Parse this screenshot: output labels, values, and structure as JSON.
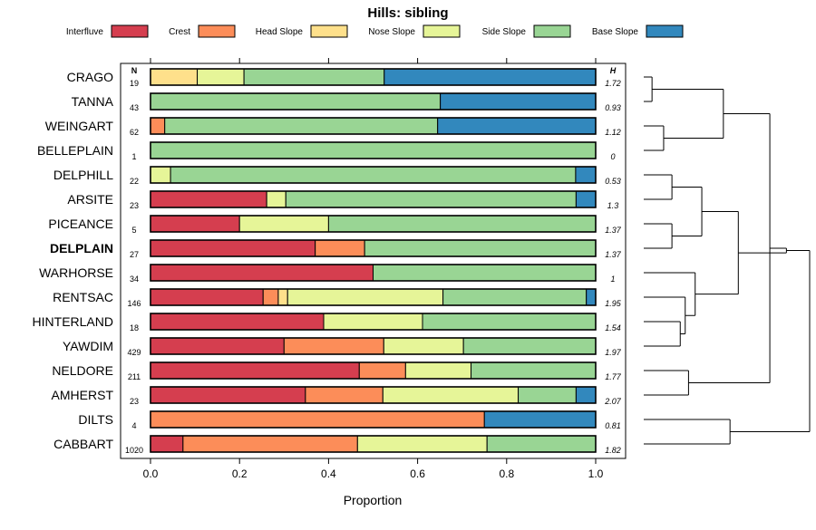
{
  "chart_data": {
    "type": "bar",
    "orientation": "horizontal",
    "stacked": true,
    "title": "Hills: sibling",
    "xlabel": "Proportion",
    "xlim": [
      0,
      1
    ],
    "xticks": [
      0,
      0.2,
      0.4,
      0.6,
      0.8,
      1
    ],
    "xtick_labels": [
      "0.0",
      "0.2",
      "0.4",
      "0.6",
      "0.8",
      "1.0"
    ],
    "n_header": "N",
    "h_header": "H",
    "highlight": "DELPLAIN",
    "legend": [
      {
        "name": "Interfluve",
        "color": "#D53E4F"
      },
      {
        "name": "Crest",
        "color": "#FC8D59"
      },
      {
        "name": "Head Slope",
        "color": "#FEE08B"
      },
      {
        "name": "Nose Slope",
        "color": "#E6F598"
      },
      {
        "name": "Side Slope",
        "color": "#99D594"
      },
      {
        "name": "Base Slope",
        "color": "#3288BD"
      }
    ],
    "rows": [
      {
        "label": "CRAGO",
        "n": "19",
        "h": "1.72",
        "values": [
          0,
          0,
          0.105,
          0.105,
          0.315,
          0.475
        ]
      },
      {
        "label": "TANNA",
        "n": "43",
        "h": "0.93",
        "values": [
          0,
          0,
          0,
          0,
          0.651,
          0.349
        ]
      },
      {
        "label": "WEINGART",
        "n": "62",
        "h": "1.12",
        "values": [
          0,
          0.032,
          0,
          0,
          0.613,
          0.355
        ]
      },
      {
        "label": "BELLEPLAIN",
        "n": "1",
        "h": "0",
        "values": [
          0,
          0,
          0,
          0,
          1.0,
          0
        ]
      },
      {
        "label": "DELPHILL",
        "n": "22",
        "h": "0.53",
        "values": [
          0,
          0,
          0,
          0.045,
          0.91,
          0.045
        ]
      },
      {
        "label": "ARSITE",
        "n": "23",
        "h": "1.3",
        "values": [
          0.261,
          0,
          0,
          0.043,
          0.652,
          0.044
        ]
      },
      {
        "label": "PICEANCE",
        "n": "5",
        "h": "1.37",
        "values": [
          0.2,
          0,
          0,
          0.2,
          0.6,
          0
        ]
      },
      {
        "label": "DELPLAIN",
        "n": "27",
        "h": "1.37",
        "values": [
          0.37,
          0.111,
          0,
          0,
          0.519,
          0
        ]
      },
      {
        "label": "WARHORSE",
        "n": "34",
        "h": "1",
        "values": [
          0.5,
          0,
          0,
          0,
          0.5,
          0
        ]
      },
      {
        "label": "RENTSAC",
        "n": "146",
        "h": "1.95",
        "values": [
          0.253,
          0.034,
          0.021,
          0.349,
          0.322,
          0.021
        ]
      },
      {
        "label": "HINTERLAND",
        "n": "18",
        "h": "1.54",
        "values": [
          0.389,
          0,
          0,
          0.222,
          0.389,
          0
        ]
      },
      {
        "label": "YAWDIM",
        "n": "429",
        "h": "1.97",
        "values": [
          0.3,
          0.224,
          0,
          0.179,
          0.297,
          0
        ]
      },
      {
        "label": "NELDORE",
        "n": "211",
        "h": "1.77",
        "values": [
          0.469,
          0.104,
          0,
          0.147,
          0.28,
          0
        ]
      },
      {
        "label": "AMHERST",
        "n": "23",
        "h": "2.07",
        "values": [
          0.348,
          0.174,
          0,
          0.304,
          0.13,
          0.044
        ]
      },
      {
        "label": "DILTS",
        "n": "4",
        "h": "0.81",
        "values": [
          0,
          0.75,
          0,
          0,
          0,
          0.25
        ]
      },
      {
        "label": "CABBART",
        "n": "1020",
        "h": "1.82",
        "values": [
          0.073,
          0.392,
          0,
          0.291,
          0.244,
          0
        ]
      }
    ],
    "dendrogram": {
      "type": "hierarchical-clustering",
      "leaf_order": [
        "CRAGO",
        "TANNA",
        "WEINGART",
        "BELLEPLAIN",
        "DELPHILL",
        "ARSITE",
        "PICEANCE",
        "DELPLAIN",
        "WARHORSE",
        "RENTSAC",
        "HINTERLAND",
        "YAWDIM",
        "NELDORE",
        "AMHERST",
        "DILTS",
        "CABBART"
      ],
      "merges": [
        {
          "a": 1,
          "b": 2,
          "height": 0.05
        },
        {
          "a": 3,
          "b": 4,
          "height": 0.12
        },
        {
          "a": 5,
          "b": 6,
          "height": 0.17
        },
        {
          "a": 7,
          "b": 8,
          "height": 0.17
        },
        {
          "a": 11,
          "b": 12,
          "height": 0.22
        },
        {
          "a": 13,
          "b": 14,
          "height": 0.27
        },
        {
          "a": 10,
          "b": "m4",
          "height": 0.25
        },
        {
          "a": "m2",
          "b": "m3",
          "height": 0.35
        },
        {
          "a": 9,
          "b": "m6",
          "height": 0.31
        },
        {
          "a": 15,
          "b": 16,
          "height": 0.52
        },
        {
          "a": "m0",
          "b": "m1",
          "height": 0.48
        },
        {
          "a": "m7",
          "b": "m8",
          "height": 0.57
        },
        {
          "a": "m10",
          "b": "m5",
          "height": 0.76
        },
        {
          "a": "m12",
          "b": "m11",
          "height": 0.86
        },
        {
          "a": "m13",
          "b": "m9",
          "height": 1.0
        }
      ]
    }
  }
}
